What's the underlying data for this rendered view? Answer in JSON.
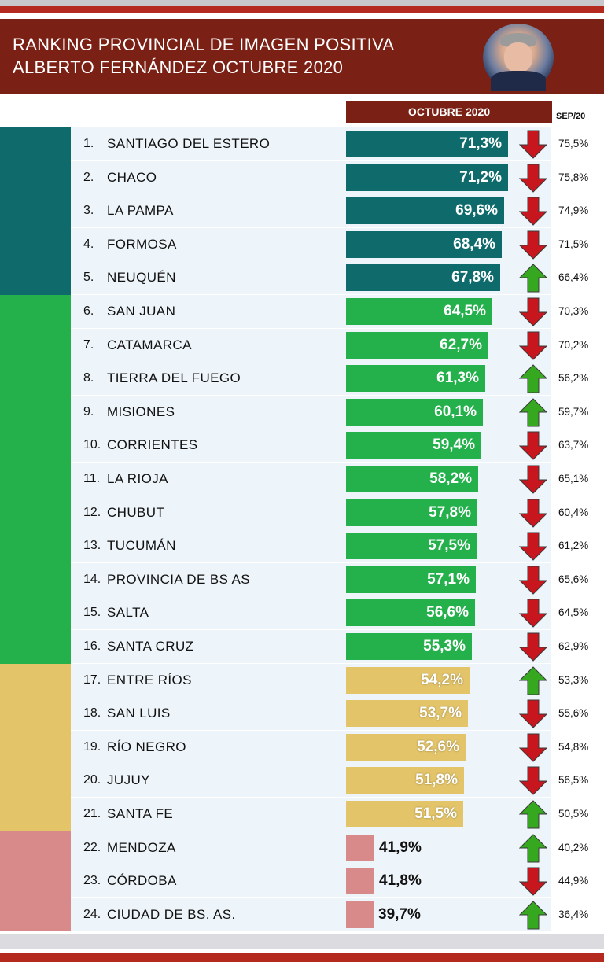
{
  "header": {
    "title": "RANKING PROVINCIAL DE IMAGEN POSITIVA\nALBERTO FERNÁNDEZ OCTUBRE 2020"
  },
  "columns": {
    "current": "OCTUBRE 2020",
    "previous": "SEP/20"
  },
  "colors": {
    "header": "#7b2015",
    "teal": "#0f6b6b",
    "green": "#24b14c",
    "yellow": "#e3c469",
    "pink": "#d88a8a",
    "arrow_up": "#35a820",
    "arrow_down": "#c8161e"
  },
  "chart_data": {
    "type": "bar",
    "title": "RANKING PROVINCIAL DE IMAGEN POSITIVA ALBERTO FERNÁNDEZ OCTUBRE 2020",
    "orientation": "horizontal",
    "rows": [
      {
        "rank": "1.",
        "name": "SANTIAGO DEL ESTERO",
        "value": 71.3,
        "label": "71,3%",
        "prev": "75,5%",
        "trend": "down",
        "group": "teal"
      },
      {
        "rank": "2.",
        "name": "CHACO",
        "value": 71.2,
        "label": "71,2%",
        "prev": "75,8%",
        "trend": "down",
        "group": "teal"
      },
      {
        "rank": "3.",
        "name": "LA PAMPA",
        "value": 69.6,
        "label": "69,6%",
        "prev": "74,9%",
        "trend": "down",
        "group": "teal"
      },
      {
        "rank": "4.",
        "name": "FORMOSA",
        "value": 68.4,
        "label": "68,4%",
        "prev": "71,5%",
        "trend": "down",
        "group": "teal"
      },
      {
        "rank": "5.",
        "name": "NEUQUÉN",
        "value": 67.8,
        "label": "67,8%",
        "prev": "66,4%",
        "trend": "up",
        "group": "teal"
      },
      {
        "rank": "6.",
        "name": "SAN JUAN",
        "value": 64.5,
        "label": "64,5%",
        "prev": "70,3%",
        "trend": "down",
        "group": "green"
      },
      {
        "rank": "7.",
        "name": "CATAMARCA",
        "value": 62.7,
        "label": "62,7%",
        "prev": "70,2%",
        "trend": "down",
        "group": "green"
      },
      {
        "rank": "8.",
        "name": "TIERRA DEL FUEGO",
        "value": 61.3,
        "label": "61,3%",
        "prev": "56,2%",
        "trend": "up",
        "group": "green"
      },
      {
        "rank": "9.",
        "name": "MISIONES",
        "value": 60.1,
        "label": "60,1%",
        "prev": "59,7%",
        "trend": "up",
        "group": "green"
      },
      {
        "rank": "10.",
        "name": "CORRIENTES",
        "value": 59.4,
        "label": "59,4%",
        "prev": "63,7%",
        "trend": "down",
        "group": "green"
      },
      {
        "rank": "11.",
        "name": "LA RIOJA",
        "value": 58.2,
        "label": "58,2%",
        "prev": "65,1%",
        "trend": "down",
        "group": "green"
      },
      {
        "rank": "12.",
        "name": "CHUBUT",
        "value": 57.8,
        "label": "57,8%",
        "prev": "60,4%",
        "trend": "down",
        "group": "green"
      },
      {
        "rank": "13.",
        "name": "TUCUMÁN",
        "value": 57.5,
        "label": "57,5%",
        "prev": "61,2%",
        "trend": "down",
        "group": "green"
      },
      {
        "rank": "14.",
        "name": "PROVINCIA DE BS AS",
        "value": 57.1,
        "label": "57,1%",
        "prev": "65,6%",
        "trend": "down",
        "group": "green"
      },
      {
        "rank": "15.",
        "name": "SALTA",
        "value": 56.6,
        "label": "56,6%",
        "prev": "64,5%",
        "trend": "down",
        "group": "green"
      },
      {
        "rank": "16.",
        "name": "SANTA CRUZ",
        "value": 55.3,
        "label": "55,3%",
        "prev": "62,9%",
        "trend": "down",
        "group": "green"
      },
      {
        "rank": "17.",
        "name": "ENTRE RÍOS",
        "value": 54.2,
        "label": "54,2%",
        "prev": "53,3%",
        "trend": "up",
        "group": "yellow"
      },
      {
        "rank": "18.",
        "name": "SAN LUIS",
        "value": 53.7,
        "label": "53,7%",
        "prev": "55,6%",
        "trend": "down",
        "group": "yellow"
      },
      {
        "rank": "19.",
        "name": "RÍO NEGRO",
        "value": 52.6,
        "label": "52,6%",
        "prev": "54,8%",
        "trend": "down",
        "group": "yellow"
      },
      {
        "rank": "20.",
        "name": "JUJUY",
        "value": 51.8,
        "label": "51,8%",
        "prev": "56,5%",
        "trend": "down",
        "group": "yellow"
      },
      {
        "rank": "21.",
        "name": "SANTA FE",
        "value": 51.5,
        "label": "51,5%",
        "prev": "50,5%",
        "trend": "up",
        "group": "yellow"
      },
      {
        "rank": "22.",
        "name": "MENDOZA",
        "value": 41.9,
        "label": "41,9%",
        "prev": "40,2%",
        "trend": "up",
        "group": "pink"
      },
      {
        "rank": "23.",
        "name": "CÓRDOBA",
        "value": 41.8,
        "label": "41,8%",
        "prev": "44,9%",
        "trend": "down",
        "group": "pink"
      },
      {
        "rank": "24.",
        "name": "CIUDAD DE BS. AS.",
        "value": 39.7,
        "label": "39,7%",
        "prev": "36,4%",
        "trend": "up",
        "group": "pink"
      }
    ]
  }
}
